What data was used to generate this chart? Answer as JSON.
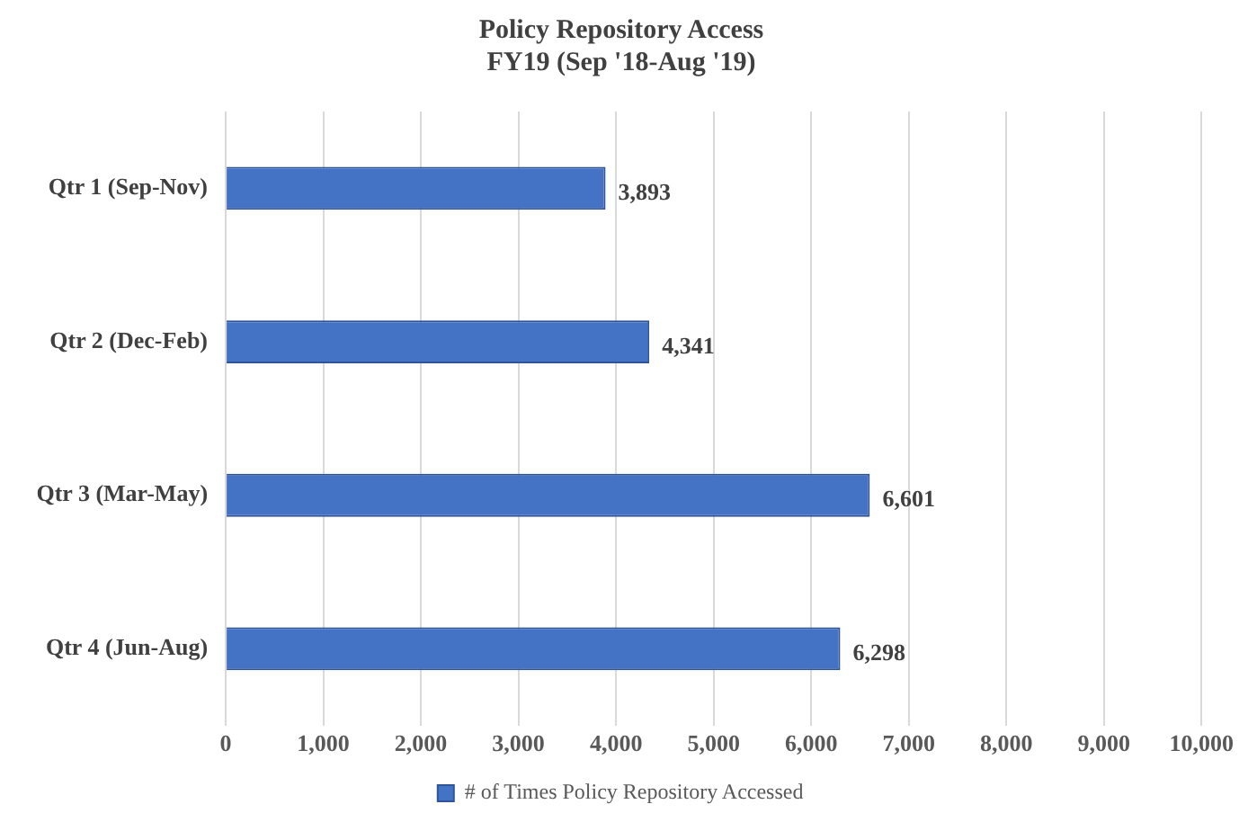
{
  "chart_data": {
    "type": "bar",
    "orientation": "horizontal",
    "title": "Policy Repository Access",
    "subtitle": "FY19 (Sep '18-Aug '19)",
    "categories": [
      "Qtr 1 (Sep-Nov)",
      "Qtr 2 (Dec-Feb)",
      "Qtr 3 (Mar-May)",
      "Qtr 4 (Jun-Aug)"
    ],
    "series": [
      {
        "name": "# of Times Policy Repository Accessed",
        "color": "#4472c4",
        "values": [
          3893,
          4341,
          6601,
          6298
        ],
        "value_labels": [
          "3,893",
          "4,341",
          "6,601",
          "6,298"
        ]
      }
    ],
    "xlim": [
      0,
      10000
    ],
    "xticks": [
      0,
      {
        "value": 1000,
        "label": "1,000"
      },
      {
        "value": 2000,
        "label": "2,000"
      },
      {
        "value": 3000,
        "label": "3,000"
      },
      {
        "value": 4000,
        "label": "4,000"
      },
      {
        "value": 5000,
        "label": "5,000"
      },
      {
        "value": 6000,
        "label": "6,000"
      },
      {
        "value": 7000,
        "label": "7,000"
      },
      {
        "value": 8000,
        "label": "8,000"
      },
      {
        "value": 9000,
        "label": "9,000"
      },
      {
        "value": 10000,
        "label": "10,000"
      }
    ],
    "grid": "x",
    "legend": "bottom"
  }
}
